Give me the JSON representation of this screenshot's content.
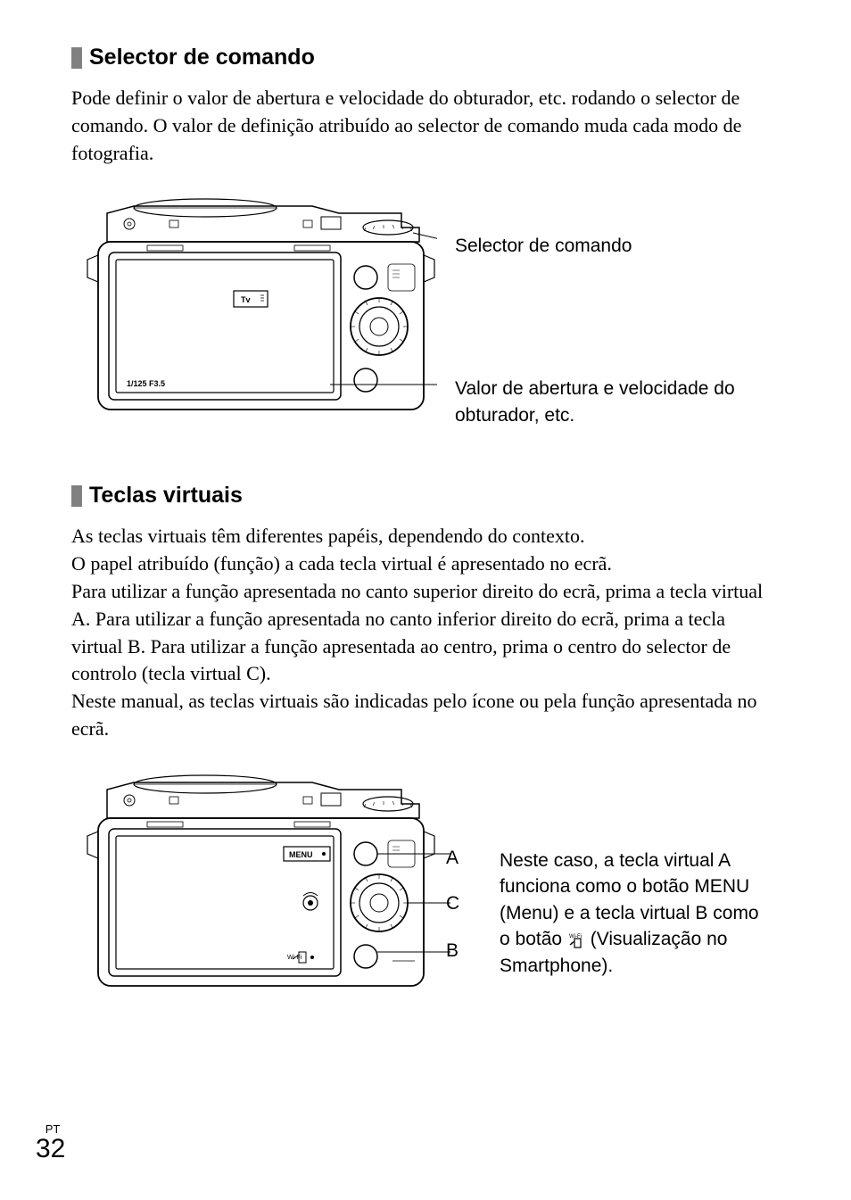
{
  "section1": {
    "heading": "Selector de comando",
    "body": "Pode definir o valor de abertura e velocidade do obturador, etc. rodando o selector de comando. O valor de definição atribuído ao selector de comando muda cada modo de fotografia.",
    "callout_top": "Selector de comando",
    "callout_bottom": "Valor de abertura e velocidade do obturador, etc.",
    "screen_mode": "Tv",
    "screen_values": "1/125   F3.5"
  },
  "section2": {
    "heading": "Teclas virtuais",
    "body": "As teclas virtuais têm diferentes papéis, dependendo do contexto.\nO papel atribuído (função) a cada tecla virtual é apresentado no ecrã.\nPara utilizar a função apresentada no canto superior direito do ecrã, prima a tecla virtual A. Para utilizar a função apresentada no canto inferior direito do ecrã, prima a tecla virtual B. Para utilizar a função apresentada ao centro, prima o centro do selector de controlo (tecla virtual C).\nNeste manual, as teclas virtuais são indicadas pelo ícone ou pela função apresentada no ecrã.",
    "marker_a": "A",
    "marker_b": "B",
    "marker_c": "C",
    "screen_menu": "MENU",
    "explanation_part1": "Neste caso, a tecla virtual A funciona como o botão MENU (Menu) e a tecla virtual B como o botão ",
    "explanation_part2": " (Visualização no Smartphone).",
    "wifi_label": "Wi-Fi"
  },
  "footer": {
    "lang": "PT",
    "page_num": "32"
  },
  "colors": {
    "heading_bar": "#808080",
    "text": "#000000",
    "bg": "#ffffff"
  }
}
